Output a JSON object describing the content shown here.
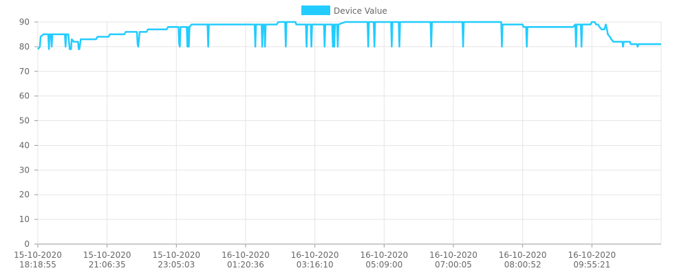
{
  "chart_data": {
    "type": "line",
    "title": "",
    "xlabel": "",
    "ylabel": "",
    "ylim": [
      0,
      90
    ],
    "y_ticks": [
      0,
      10,
      20,
      30,
      40,
      50,
      60,
      70,
      80,
      90
    ],
    "x_range": [
      0,
      9
    ],
    "x_ticks": [
      {
        "date": "15-10-2020",
        "time": "18:18:55"
      },
      {
        "date": "15-10-2020",
        "time": "21:06:35"
      },
      {
        "date": "15-10-2020",
        "time": "23:05:03"
      },
      {
        "date": "16-10-2020",
        "time": "01:20:36"
      },
      {
        "date": "16-10-2020",
        "time": "03:16:10"
      },
      {
        "date": "16-10-2020",
        "time": "05:09:00"
      },
      {
        "date": "16-10-2020",
        "time": "07:00:05"
      },
      {
        "date": "16-10-2020",
        "time": "08:00:52"
      },
      {
        "date": "16-10-2020",
        "time": "09:55:21"
      }
    ],
    "grid": true,
    "legend_position": "top-center",
    "series": [
      {
        "name": "Device Value",
        "color": "#22ccff",
        "points": [
          [
            0.0,
            79
          ],
          [
            0.03,
            80
          ],
          [
            0.04,
            84
          ],
          [
            0.08,
            85
          ],
          [
            0.15,
            85
          ],
          [
            0.16,
            79
          ],
          [
            0.17,
            85
          ],
          [
            0.19,
            85
          ],
          [
            0.2,
            80
          ],
          [
            0.21,
            85
          ],
          [
            0.39,
            85
          ],
          [
            0.4,
            80
          ],
          [
            0.41,
            85
          ],
          [
            0.44,
            85
          ],
          [
            0.46,
            79
          ],
          [
            0.48,
            79
          ],
          [
            0.49,
            83
          ],
          [
            0.52,
            82
          ],
          [
            0.58,
            82
          ],
          [
            0.59,
            79
          ],
          [
            0.6,
            79
          ],
          [
            0.62,
            83
          ],
          [
            0.84,
            83
          ],
          [
            0.86,
            84
          ],
          [
            1.02,
            84
          ],
          [
            1.04,
            85
          ],
          [
            1.25,
            85
          ],
          [
            1.27,
            86
          ],
          [
            1.43,
            86
          ],
          [
            1.44,
            81
          ],
          [
            1.45,
            80
          ],
          [
            1.47,
            86
          ],
          [
            1.57,
            86
          ],
          [
            1.59,
            87
          ],
          [
            1.86,
            87
          ],
          [
            1.88,
            88
          ],
          [
            2.03,
            88
          ],
          [
            2.04,
            81
          ],
          [
            2.05,
            80
          ],
          [
            2.06,
            88
          ],
          [
            2.15,
            88
          ],
          [
            2.16,
            80
          ],
          [
            2.17,
            88
          ],
          [
            2.18,
            80
          ],
          [
            2.19,
            88
          ],
          [
            2.22,
            89
          ],
          [
            2.45,
            89
          ],
          [
            2.46,
            80
          ],
          [
            2.47,
            89
          ],
          [
            3.13,
            89
          ],
          [
            3.14,
            80
          ],
          [
            3.15,
            89
          ],
          [
            3.23,
            89
          ],
          [
            3.24,
            80
          ],
          [
            3.25,
            89
          ],
          [
            3.27,
            89
          ],
          [
            3.28,
            80
          ],
          [
            3.29,
            89
          ],
          [
            3.45,
            89
          ],
          [
            3.47,
            90
          ],
          [
            3.57,
            90
          ],
          [
            3.58,
            80
          ],
          [
            3.59,
            90
          ],
          [
            3.72,
            90
          ],
          [
            3.73,
            89
          ],
          [
            3.87,
            89
          ],
          [
            3.88,
            80
          ],
          [
            3.89,
            89
          ],
          [
            3.94,
            89
          ],
          [
            3.95,
            80
          ],
          [
            3.96,
            89
          ],
          [
            4.13,
            89
          ],
          [
            4.14,
            80
          ],
          [
            4.15,
            89
          ],
          [
            4.25,
            89
          ],
          [
            4.26,
            80
          ],
          [
            4.27,
            89
          ],
          [
            4.28,
            80
          ],
          [
            4.29,
            89
          ],
          [
            4.32,
            89
          ],
          [
            4.33,
            80
          ],
          [
            4.34,
            89
          ],
          [
            4.44,
            90
          ],
          [
            4.76,
            90
          ],
          [
            4.77,
            80
          ],
          [
            4.78,
            90
          ],
          [
            4.85,
            90
          ],
          [
            4.86,
            80
          ],
          [
            4.87,
            90
          ],
          [
            5.1,
            90
          ],
          [
            5.11,
            80
          ],
          [
            5.12,
            90
          ],
          [
            5.21,
            90
          ],
          [
            5.22,
            80
          ],
          [
            5.23,
            90
          ],
          [
            5.67,
            90
          ],
          [
            5.68,
            80
          ],
          [
            5.69,
            90
          ],
          [
            6.13,
            90
          ],
          [
            6.14,
            80
          ],
          [
            6.15,
            90
          ],
          [
            6.69,
            90
          ],
          [
            6.7,
            80
          ],
          [
            6.71,
            89
          ],
          [
            7.0,
            89
          ],
          [
            7.01,
            88
          ],
          [
            7.05,
            88
          ],
          [
            7.06,
            80
          ],
          [
            7.07,
            88
          ],
          [
            7.73,
            88
          ],
          [
            7.76,
            89
          ],
          [
            7.77,
            80
          ],
          [
            7.78,
            89
          ],
          [
            7.84,
            89
          ],
          [
            7.85,
            80
          ],
          [
            7.86,
            89
          ],
          [
            7.98,
            89
          ],
          [
            8.0,
            90
          ],
          [
            8.04,
            90
          ],
          [
            8.06,
            89
          ],
          [
            8.09,
            89
          ],
          [
            8.11,
            88
          ],
          [
            8.14,
            87
          ],
          [
            8.18,
            87
          ],
          [
            8.2,
            89
          ],
          [
            8.21,
            88
          ],
          [
            8.23,
            85
          ],
          [
            8.26,
            84
          ],
          [
            8.28,
            83
          ],
          [
            8.31,
            82
          ],
          [
            8.44,
            82
          ],
          [
            8.45,
            80
          ],
          [
            8.46,
            82
          ],
          [
            8.55,
            82
          ],
          [
            8.56,
            81
          ],
          [
            8.65,
            81
          ],
          [
            8.66,
            80
          ],
          [
            8.67,
            81
          ],
          [
            9.0,
            81
          ]
        ]
      }
    ]
  }
}
